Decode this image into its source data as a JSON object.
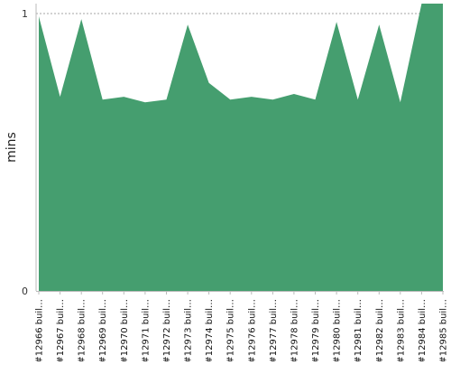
{
  "chart_data": {
    "type": "area",
    "title": "",
    "xlabel": "",
    "ylabel": "mins",
    "ylim": [
      0,
      1
    ],
    "yticks": [
      0,
      1
    ],
    "grid": "dashed line at y = 1",
    "legend": "none",
    "categories": [
      "#12966 buil…",
      "#12967 buil…",
      "#12968 buil…",
      "#12969 buil…",
      "#12970 buil…",
      "#12971 buil…",
      "#12972 buil…",
      "#12973 buil…",
      "#12974 buil…",
      "#12975 buil…",
      "#12976 buil…",
      "#12977 buil…",
      "#12978 buil…",
      "#12979 buil…",
      "#12980 buil…",
      "#12981 buil…",
      "#12982 buil…",
      "#12983 buil…",
      "#12984 buil…",
      "#12985 buil…"
    ],
    "values": [
      0.99,
      0.7,
      0.98,
      0.69,
      0.7,
      0.68,
      0.69,
      0.96,
      0.75,
      0.69,
      0.7,
      0.69,
      0.71,
      0.69,
      0.97,
      0.69,
      0.96,
      0.68,
      1.04,
      1.04
    ],
    "colors": {
      "area": "#459e6f",
      "axis": "#bbbbbb",
      "grid": "#888888"
    }
  }
}
